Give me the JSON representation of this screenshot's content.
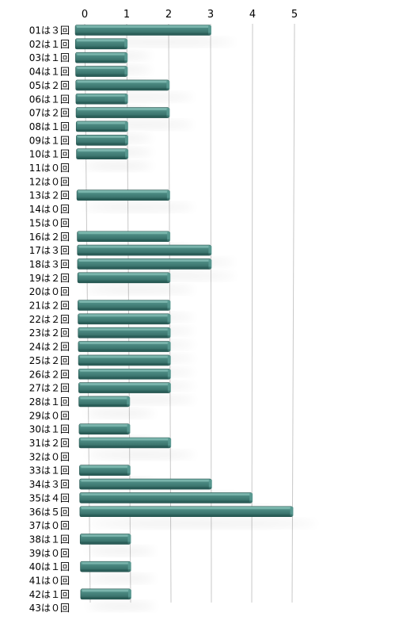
{
  "chart_data": {
    "type": "bar",
    "orientation": "horizontal",
    "style": "3d-perspective",
    "title": "",
    "xlabel": "",
    "ylabel": "",
    "xlim": [
      0,
      5
    ],
    "xticks": [
      "0",
      "1",
      "2",
      "3",
      "4",
      "5"
    ],
    "grid": true,
    "legend": "none",
    "categories": [
      "01は３回",
      "02は１回",
      "03は１回",
      "04は１回",
      "05は２回",
      "06は１回",
      "07は２回",
      "08は１回",
      "09は１回",
      "10は１回",
      "11は０回",
      "12は０回",
      "13は２回",
      "14は０回",
      "15は０回",
      "16は２回",
      "17は３回",
      "18は３回",
      "19は２回",
      "20は０回",
      "21は２回",
      "22は２回",
      "23は２回",
      "24は２回",
      "25は２回",
      "26は２回",
      "27は２回",
      "28は１回",
      "29は０回",
      "30は１回",
      "31は２回",
      "32は０回",
      "33は１回",
      "34は３回",
      "35は４回",
      "36は５回",
      "37は０回",
      "38は１回",
      "39は０回",
      "40は１回",
      "41は０回",
      "42は１回",
      "43は０回"
    ],
    "values": [
      3,
      1,
      1,
      1,
      2,
      1,
      2,
      1,
      1,
      1,
      0,
      0,
      2,
      0,
      0,
      2,
      3,
      3,
      2,
      0,
      2,
      2,
      2,
      2,
      2,
      2,
      2,
      1,
      0,
      1,
      2,
      0,
      1,
      3,
      4,
      5,
      0,
      1,
      0,
      1,
      0,
      1,
      0
    ],
    "colors": {
      "bar_front": "#3e7b74",
      "bar_top": "#7fb9b0",
      "bar_shade": "#22504b",
      "grid": "#c8c8c8",
      "label": "#000000"
    }
  }
}
